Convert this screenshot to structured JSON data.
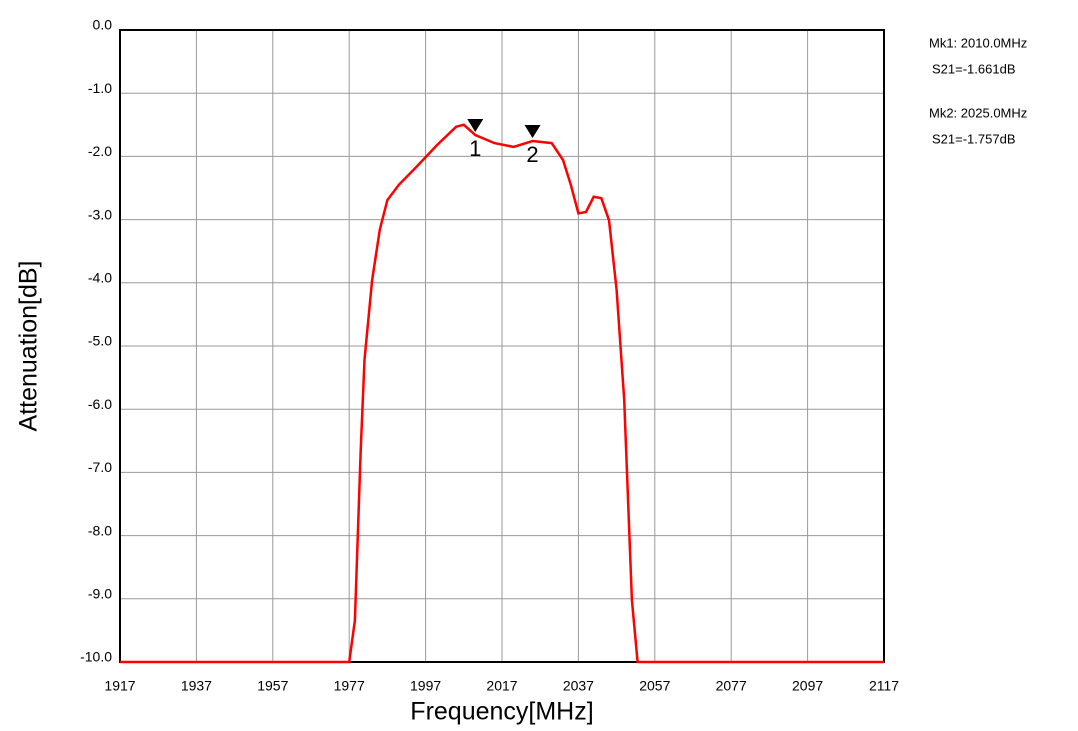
{
  "chart_data": {
    "type": "line",
    "xlabel": "Frequency[MHz]",
    "ylabel": "Attenuation[dB]",
    "xlim": [
      1917,
      2117
    ],
    "ylim": [
      -10,
      0
    ],
    "xticks": [
      1917,
      1937,
      1957,
      1977,
      1997,
      2017,
      2037,
      2057,
      2077,
      2097,
      2117
    ],
    "yticks": [
      {
        "value": 0,
        "label": "0.0"
      },
      {
        "value": -1,
        "label": "-1.0"
      },
      {
        "value": -2,
        "label": "-2.0"
      },
      {
        "value": -3,
        "label": "-3.0"
      },
      {
        "value": -4,
        "label": "-4.0"
      },
      {
        "value": -5,
        "label": "-5.0"
      },
      {
        "value": -6,
        "label": "-6.0"
      },
      {
        "value": -7,
        "label": "-7.0"
      },
      {
        "value": -8,
        "label": "-8.0"
      },
      {
        "value": -9,
        "label": "-9.0"
      },
      {
        "value": -10,
        "label": "-10.0"
      }
    ],
    "grid": true,
    "series": [
      {
        "color": "#ff0000",
        "x": [
          1917,
          1977,
          1978.5,
          1980,
          1981,
          1983,
          1985,
          1987,
          1990,
          1995,
          2000,
          2005,
          2007,
          2010,
          2015,
          2020,
          2025,
          2030,
          2033,
          2035,
          2037,
          2039,
          2041,
          2043,
          2045,
          2047,
          2049,
          2051,
          2052.5,
          2117
        ],
        "values": [
          -10,
          -10,
          -9.34,
          -6.65,
          -5.22,
          -3.96,
          -3.16,
          -2.69,
          -2.45,
          -2.14,
          -1.82,
          -1.53,
          -1.5,
          -1.661,
          -1.79,
          -1.85,
          -1.757,
          -1.79,
          -2.06,
          -2.45,
          -2.9,
          -2.88,
          -2.64,
          -2.66,
          -3.01,
          -4.11,
          -5.85,
          -9.02,
          -10,
          -10
        ]
      }
    ],
    "markers": [
      {
        "label": "1",
        "x": 2010,
        "y": -1.661,
        "text": [
          "Mk1: 2010.0MHz",
          "S21=-1.661dB"
        ]
      },
      {
        "label": "2",
        "x": 2025,
        "y": -1.757,
        "text": [
          "Mk2: 2025.0MHz",
          "S21=-1.757dB"
        ]
      }
    ]
  }
}
